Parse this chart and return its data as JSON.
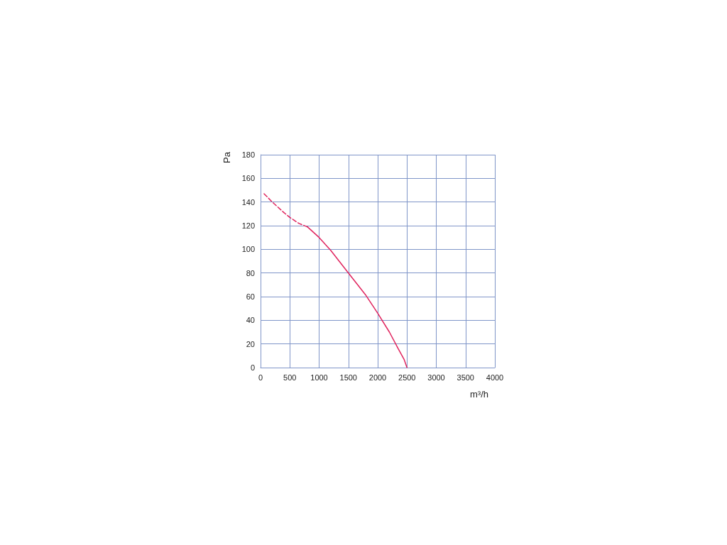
{
  "chart_data": {
    "type": "line",
    "xlabel": "m³/h",
    "ylabel": "Pa",
    "xlim": [
      0,
      4000
    ],
    "xticks": [
      0,
      500,
      1000,
      1500,
      2000,
      2500,
      3000,
      3500,
      4000
    ],
    "ylim": [
      0,
      180
    ],
    "yticks": [
      0,
      20,
      40,
      60,
      80,
      100,
      120,
      140,
      160,
      180
    ],
    "grid": true,
    "marker": "none",
    "series": [
      {
        "color": "#e0245e",
        "line_style": "dashed",
        "x": [
          60,
          200,
          400,
          500,
          650,
          800
        ],
        "values": [
          147,
          140,
          131,
          127,
          122,
          119
        ]
      },
      {
        "color": "#e0245e",
        "line_style": "solid",
        "x": [
          800,
          1000,
          1200,
          1500,
          1800,
          2000,
          2200,
          2350,
          2450,
          2500
        ],
        "values": [
          119,
          110,
          99,
          80,
          61,
          46,
          30,
          16,
          7,
          0
        ]
      }
    ]
  }
}
